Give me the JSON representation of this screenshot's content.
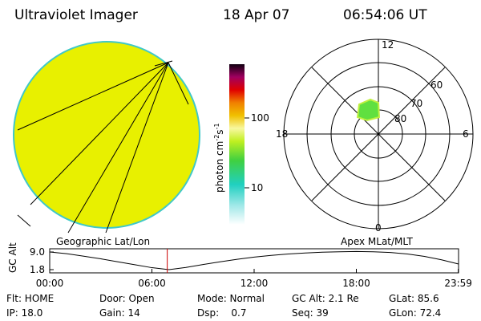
{
  "header": {
    "title": "Ultraviolet Imager",
    "date": "18 Apr 07",
    "time": "06:54:06 UT"
  },
  "colorbar": {
    "label": [
      "photon cm",
      "-2",
      "s",
      "-1"
    ],
    "ticks": [
      "100",
      "10"
    ]
  },
  "polar": {
    "mlt": [
      "12",
      "18",
      "6",
      "0"
    ],
    "mlat": [
      "60",
      "70",
      "80"
    ]
  },
  "captions": [
    "Geographic Lat/Lon",
    "Apex MLat/MLT"
  ],
  "info": [
    [
      "Flt: HOME",
      "Door: Open",
      "Mode: Normal",
      "GC Alt: 2.1 Re",
      "GLat: 85.6"
    ],
    [
      "IP: 18.0",
      "Gain: 14",
      "Dsp:    0.7",
      "Seq: 39",
      "GLon: 72.4"
    ]
  ],
  "chart_data": {
    "type": "line",
    "ylabel": "GC Alt",
    "x": [
      0,
      1,
      2,
      3,
      4,
      5,
      6,
      7,
      8,
      9,
      10,
      11,
      12,
      13,
      14,
      15,
      16,
      17,
      18,
      19,
      20,
      21,
      22,
      23,
      24
    ],
    "series": [
      {
        "color": "#000000",
        "values": [
          9.0,
          8.3,
          7.3,
          6.2,
          5.0,
          3.8,
          2.6,
          1.8,
          2.7,
          3.9,
          5.0,
          6.0,
          6.9,
          7.6,
          8.2,
          8.6,
          8.9,
          9.1,
          9.2,
          9.1,
          8.8,
          8.2,
          7.2,
          5.8,
          4.1
        ]
      }
    ],
    "marker_x": 6.9,
    "marker_color": "#cc0000",
    "xlim": [
      0,
      24
    ],
    "xticks": [
      {
        "value": 0,
        "label": "00:00"
      },
      {
        "value": 6,
        "label": "06:00"
      },
      {
        "value": 12,
        "label": "12:00"
      },
      {
        "value": 18,
        "label": "18:00"
      },
      {
        "value": 23.983,
        "label": "23:59"
      }
    ],
    "ylim": [
      1.8,
      9.0
    ],
    "yticks": [
      {
        "value": 9.0,
        "label": "9.0"
      },
      1.8
    ]
  }
}
